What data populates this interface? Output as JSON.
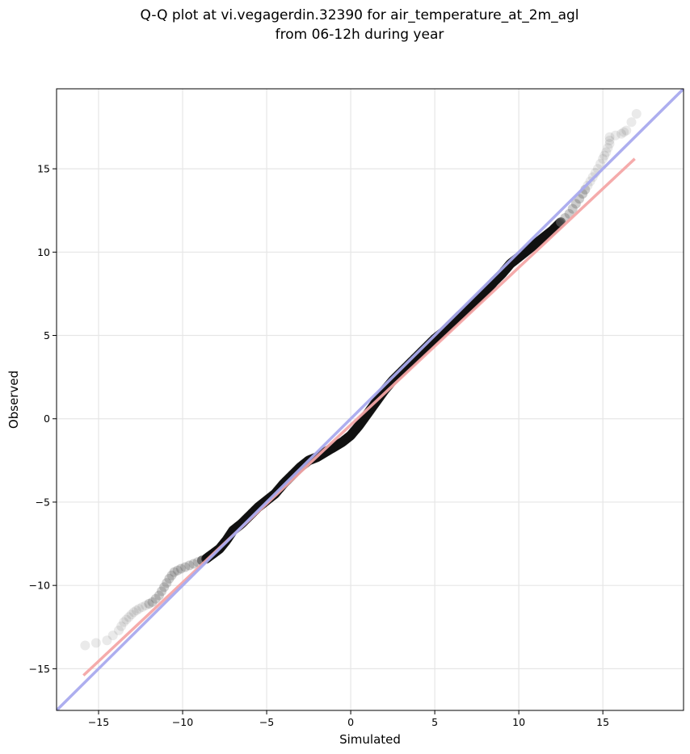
{
  "chart_data": {
    "type": "scatter",
    "title_line1": "Q-Q plot at vi.vegagerdin.32390 for air_temperature_at_2m_agl",
    "title_line2": "from 06-12h during year",
    "xlabel": "Simulated",
    "ylabel": "Observed",
    "xlim": [
      -17.5,
      19.8
    ],
    "ylim": [
      -17.5,
      19.8
    ],
    "xticks": [
      -15,
      -10,
      -5,
      0,
      5,
      10,
      15
    ],
    "yticks": [
      -15,
      -10,
      -5,
      0,
      5,
      10,
      15
    ],
    "xtick_labels": [
      "−15",
      "−10",
      "−5",
      "0",
      "5",
      "10",
      "15"
    ],
    "ytick_labels": [
      "−15",
      "−10",
      "−5",
      "0",
      "5",
      "10",
      "15"
    ],
    "grid": true,
    "legend": "none",
    "reference_line": {
      "slope": 1,
      "intercept": 0,
      "color": "#a9aaee"
    },
    "fit_line": {
      "x": [
        -15.9,
        16.9
      ],
      "y": [
        -15.4,
        15.6
      ],
      "color": "#f4a6a6"
    },
    "quantiles": [
      {
        "x": -15.8,
        "y": -13.6
      },
      {
        "x": -14.5,
        "y": -13.3
      },
      {
        "x": -13.8,
        "y": -12.7
      },
      {
        "x": -13.5,
        "y": -12.2
      },
      {
        "x": -13.2,
        "y": -11.9
      },
      {
        "x": -12.9,
        "y": -11.6
      },
      {
        "x": -12.6,
        "y": -11.4
      },
      {
        "x": -12.2,
        "y": -11.2
      },
      {
        "x": -11.8,
        "y": -11.0
      },
      {
        "x": -11.4,
        "y": -10.6
      },
      {
        "x": -11.1,
        "y": -10.1
      },
      {
        "x": -10.8,
        "y": -9.6
      },
      {
        "x": -10.5,
        "y": -9.2
      },
      {
        "x": -10.1,
        "y": -9.0
      },
      {
        "x": -9.6,
        "y": -8.8
      },
      {
        "x": -9.1,
        "y": -8.6
      },
      {
        "x": -8.6,
        "y": -8.4
      },
      {
        "x": -8.2,
        "y": -8.1
      },
      {
        "x": -7.8,
        "y": -7.8
      },
      {
        "x": -7.4,
        "y": -7.3
      },
      {
        "x": -7.0,
        "y": -6.7
      },
      {
        "x": -6.5,
        "y": -6.3
      },
      {
        "x": -6.0,
        "y": -5.8
      },
      {
        "x": -5.5,
        "y": -5.3
      },
      {
        "x": -5.0,
        "y": -4.9
      },
      {
        "x": -4.5,
        "y": -4.5
      },
      {
        "x": -4.0,
        "y": -3.9
      },
      {
        "x": -3.5,
        "y": -3.4
      },
      {
        "x": -3.0,
        "y": -2.9
      },
      {
        "x": -2.5,
        "y": -2.5
      },
      {
        "x": -2.0,
        "y": -2.3
      },
      {
        "x": -1.5,
        "y": -2.0
      },
      {
        "x": -1.0,
        "y": -1.7
      },
      {
        "x": -0.5,
        "y": -1.4
      },
      {
        "x": 0.0,
        "y": -1.0
      },
      {
        "x": 0.5,
        "y": -0.4
      },
      {
        "x": 1.0,
        "y": 0.3
      },
      {
        "x": 1.5,
        "y": 1.0
      },
      {
        "x": 2.0,
        "y": 1.7
      },
      {
        "x": 2.5,
        "y": 2.3
      },
      {
        "x": 3.0,
        "y": 2.8
      },
      {
        "x": 3.5,
        "y": 3.3
      },
      {
        "x": 4.0,
        "y": 3.8
      },
      {
        "x": 4.5,
        "y": 4.3
      },
      {
        "x": 5.0,
        "y": 4.8
      },
      {
        "x": 5.5,
        "y": 5.2
      },
      {
        "x": 6.0,
        "y": 5.7
      },
      {
        "x": 6.5,
        "y": 6.2
      },
      {
        "x": 7.0,
        "y": 6.6
      },
      {
        "x": 7.5,
        "y": 7.1
      },
      {
        "x": 8.0,
        "y": 7.6
      },
      {
        "x": 8.5,
        "y": 8.2
      },
      {
        "x": 9.0,
        "y": 8.7
      },
      {
        "x": 9.5,
        "y": 9.3
      },
      {
        "x": 10.0,
        "y": 9.7
      },
      {
        "x": 10.5,
        "y": 10.1
      },
      {
        "x": 11.0,
        "y": 10.5
      },
      {
        "x": 11.5,
        "y": 10.9
      },
      {
        "x": 12.0,
        "y": 11.3
      },
      {
        "x": 12.5,
        "y": 11.8
      },
      {
        "x": 13.0,
        "y": 12.3
      },
      {
        "x": 13.4,
        "y": 12.9
      },
      {
        "x": 13.8,
        "y": 13.5
      },
      {
        "x": 14.1,
        "y": 14.0
      },
      {
        "x": 14.4,
        "y": 14.5
      },
      {
        "x": 14.7,
        "y": 15.0
      },
      {
        "x": 15.0,
        "y": 15.6
      },
      {
        "x": 15.2,
        "y": 16.0
      },
      {
        "x": 15.4,
        "y": 16.5
      },
      {
        "x": 15.4,
        "y": 16.9
      },
      {
        "x": 16.1,
        "y": 17.1
      },
      {
        "x": 16.4,
        "y": 17.3
      },
      {
        "x": 17.0,
        "y": 18.3
      }
    ]
  }
}
